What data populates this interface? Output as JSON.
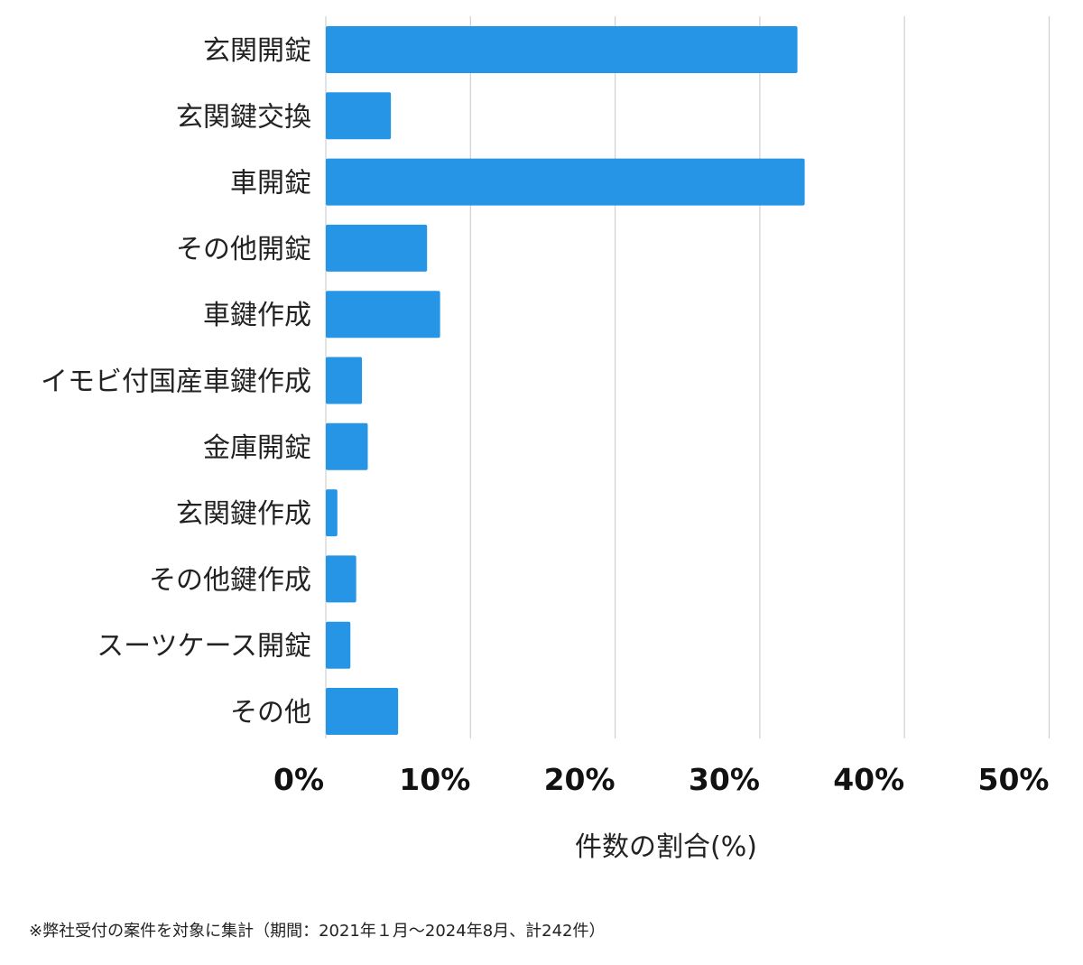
{
  "chart_data": {
    "type": "bar",
    "orientation": "horizontal",
    "categories": [
      "玄関開錠",
      "玄関鍵交換",
      "車開錠",
      "その他開錠",
      "車鍵作成",
      "イモビ付国産車鍵作成",
      "金庫開錠",
      "玄関鍵作成",
      "その他鍵作成",
      "スーツケース開錠",
      "その他"
    ],
    "values": [
      32.6,
      4.5,
      33.1,
      7.0,
      7.9,
      2.5,
      2.9,
      0.8,
      2.1,
      1.7,
      5.0
    ],
    "xlabel": "件数の割合(%)",
    "ylabel": "",
    "xlim": [
      0,
      50
    ],
    "ticks": [
      0,
      10,
      20,
      30,
      40,
      50
    ],
    "tick_labels": [
      "0%",
      "10%",
      "20%",
      "30%",
      "40%",
      "50%"
    ],
    "bar_color": "#2695e6",
    "grid_color": "#d0d0d0",
    "grid": true
  },
  "footnote": "※弊社受付の案件を対象に集計（期間：2021年１月〜2024年8月、計242件）"
}
